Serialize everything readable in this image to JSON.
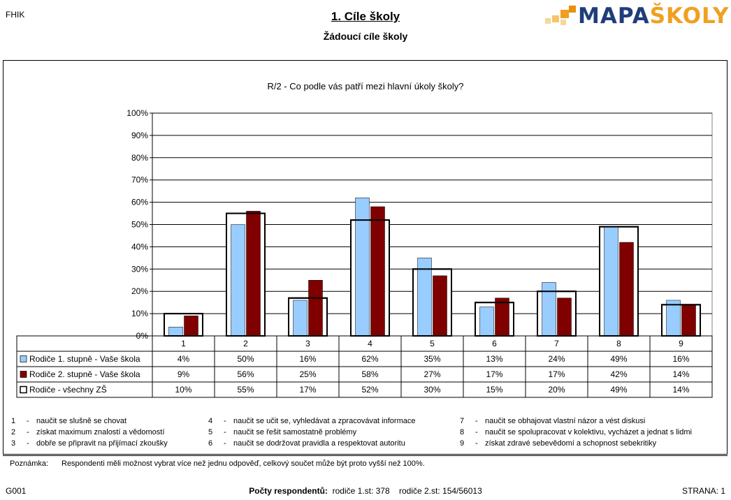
{
  "header": {
    "top_left": "FHIK",
    "title": "1. Cíle školy",
    "subtitle": "Žádoucí cíle školy",
    "logo_text_main": "MAPA",
    "logo_text_accent": "ŠKOLY"
  },
  "chart_data": {
    "type": "bar",
    "title": "R/2 - Co podle vás patří mezi hlavní úkoly školy?",
    "categories": [
      "1",
      "2",
      "3",
      "4",
      "5",
      "6",
      "7",
      "8",
      "9"
    ],
    "ylim": [
      0,
      100
    ],
    "yticks": [
      "0%",
      "10%",
      "20%",
      "30%",
      "40%",
      "50%",
      "60%",
      "70%",
      "80%",
      "90%",
      "100%"
    ],
    "grid": true,
    "series": [
      {
        "name": "Rodiče 1. stupně - Vaše škola",
        "values": [
          4,
          50,
          16,
          62,
          35,
          13,
          24,
          49,
          16
        ],
        "labels": [
          "4%",
          "50%",
          "16%",
          "62%",
          "35%",
          "13%",
          "24%",
          "49%",
          "16%"
        ],
        "color": "#99ccff"
      },
      {
        "name": "Rodiče 2. stupně - Vaše škola",
        "values": [
          9,
          56,
          25,
          58,
          27,
          17,
          17,
          42,
          14
        ],
        "labels": [
          "9%",
          "56%",
          "25%",
          "58%",
          "27%",
          "17%",
          "17%",
          "42%",
          "14%"
        ],
        "color": "#800000"
      },
      {
        "name": "Rodiče - všechny ZŠ",
        "values": [
          10,
          55,
          17,
          52,
          30,
          15,
          20,
          49,
          14
        ],
        "labels": [
          "10%",
          "55%",
          "17%",
          "52%",
          "30%",
          "15%",
          "20%",
          "49%",
          "14%"
        ],
        "color": "#ffffff"
      }
    ]
  },
  "legend_items": [
    {
      "num": "1",
      "text": "naučit se slušně se chovat"
    },
    {
      "num": "2",
      "text": "získat maximum znalostí a vědomostí"
    },
    {
      "num": "3",
      "text": "dobře se připravit na přijímací zkoušky"
    },
    {
      "num": "4",
      "text": "naučit se učit se, vyhledávat a zpracovávat informace"
    },
    {
      "num": "5",
      "text": "naučit se řešit samostatně problémy"
    },
    {
      "num": "6",
      "text": "naučit se dodržovat pravidla a respektovat autoritu"
    },
    {
      "num": "7",
      "text": "naučit se obhajovat vlastní názor a vést diskusi"
    },
    {
      "num": "8",
      "text": "naučit se spolupracovat v kolektivu, vycházet a jednat s lidmi"
    },
    {
      "num": "9",
      "text": "získat zdravé sebevědomí a schopnost sebekritiky"
    }
  ],
  "note": {
    "label": "Poznámka:",
    "text": "Respondenti měli možnost vybrat více než jednu odpověď, celkový součet může být proto vyšší než 100%."
  },
  "footer": {
    "left": "G001",
    "respondents_label": "Počty respondentů:",
    "respondents_values": "rodiče 1.st: 378    rodiče 2.st: 154/56013",
    "right": "STRANA: 1"
  }
}
